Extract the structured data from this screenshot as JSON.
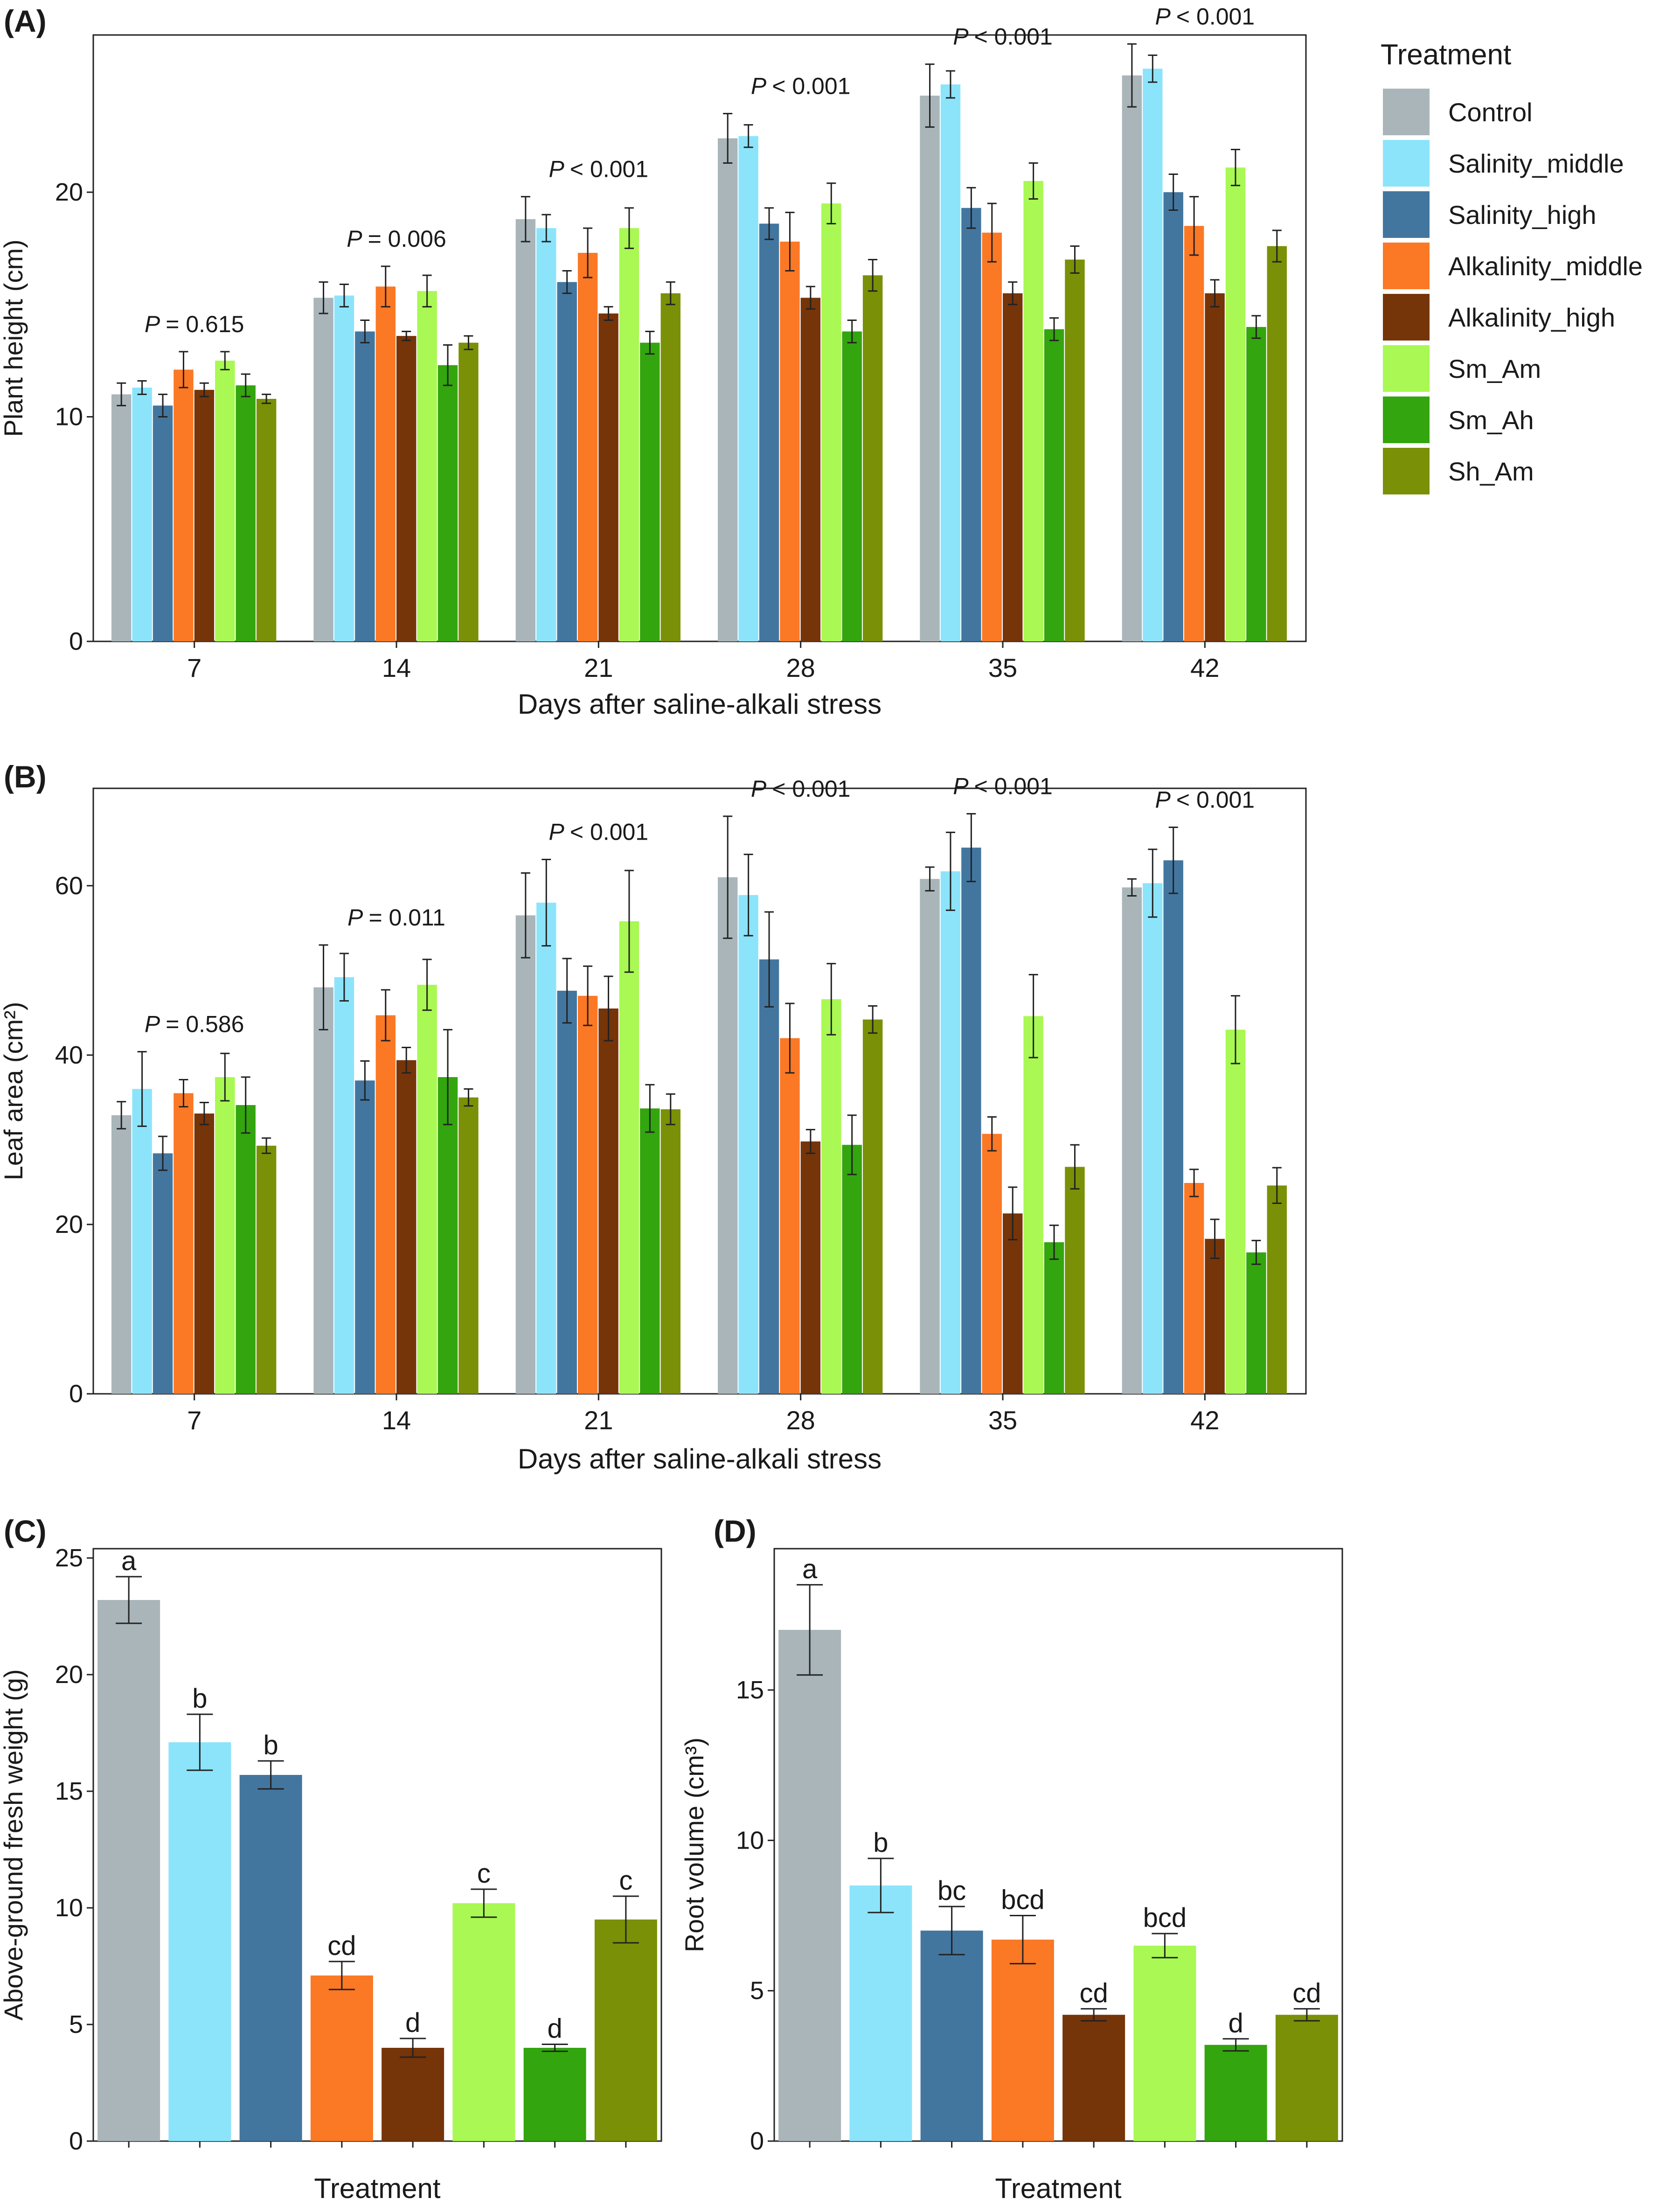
{
  "legend": {
    "title": "Treatment",
    "items": [
      {
        "name": "Control",
        "color": "#a9b5b9"
      },
      {
        "name": "Salinity_middle",
        "color": "#8ce4fb"
      },
      {
        "name": "Salinity_high",
        "color": "#43769f"
      },
      {
        "name": "Alkalinity_middle",
        "color": "#fb7825"
      },
      {
        "name": "Alkalinity_high",
        "color": "#763409"
      },
      {
        "name": "Sm_Am",
        "color": "#a9f853"
      },
      {
        "name": "Sm_Ah",
        "color": "#33a50e"
      },
      {
        "name": "Sh_Am",
        "color": "#7a9006"
      }
    ]
  },
  "chart_data": [
    {
      "panel": "(A)",
      "type": "bar",
      "xlabel": "Days after saline-alkali stress",
      "ylabel": "Plant height (cm)",
      "ylim": [
        0,
        27
      ],
      "yticks": [
        0,
        10,
        20
      ],
      "categories": [
        "7",
        "14",
        "21",
        "28",
        "35",
        "42"
      ],
      "p_values": [
        "= 0.615",
        "= 0.006",
        "< 0.001",
        "< 0.001",
        "< 0.001",
        "< 0.001"
      ],
      "series": [
        {
          "name": "Control",
          "values": [
            11.0,
            15.3,
            18.8,
            22.4,
            24.3,
            25.2
          ],
          "errors": [
            0.5,
            0.7,
            1.0,
            1.1,
            1.4,
            1.4
          ]
        },
        {
          "name": "Salinity_middle",
          "values": [
            11.3,
            15.4,
            18.4,
            22.5,
            24.8,
            25.5
          ],
          "errors": [
            0.3,
            0.5,
            0.6,
            0.5,
            0.6,
            0.6
          ]
        },
        {
          "name": "Salinity_high",
          "values": [
            10.5,
            13.8,
            16.0,
            18.6,
            19.3,
            20.0
          ],
          "errors": [
            0.5,
            0.5,
            0.5,
            0.7,
            0.9,
            0.8
          ]
        },
        {
          "name": "Alkalinity_middle",
          "values": [
            12.1,
            15.8,
            17.3,
            17.8,
            18.2,
            18.5
          ],
          "errors": [
            0.8,
            0.9,
            1.1,
            1.3,
            1.3,
            1.3
          ]
        },
        {
          "name": "Alkalinity_high",
          "values": [
            11.2,
            13.6,
            14.6,
            15.3,
            15.5,
            15.5
          ],
          "errors": [
            0.3,
            0.2,
            0.3,
            0.5,
            0.5,
            0.6
          ]
        },
        {
          "name": "Sm_Am",
          "values": [
            12.5,
            15.6,
            18.4,
            19.5,
            20.5,
            21.1
          ],
          "errors": [
            0.4,
            0.7,
            0.9,
            0.9,
            0.8,
            0.8
          ]
        },
        {
          "name": "Sm_Ah",
          "values": [
            11.4,
            12.3,
            13.3,
            13.8,
            13.9,
            14.0
          ],
          "errors": [
            0.5,
            0.9,
            0.5,
            0.5,
            0.5,
            0.5
          ]
        },
        {
          "name": "Sh_Am",
          "values": [
            10.8,
            13.3,
            15.5,
            16.3,
            17.0,
            17.6
          ],
          "errors": [
            0.2,
            0.3,
            0.5,
            0.7,
            0.6,
            0.7
          ]
        }
      ]
    },
    {
      "panel": "(B)",
      "type": "bar",
      "xlabel": "Days after saline-alkali stress",
      "ylabel": "Leaf area (cm²)",
      "ylim": [
        0,
        71.5
      ],
      "yticks": [
        0,
        20,
        40,
        60
      ],
      "categories": [
        "7",
        "14",
        "21",
        "28",
        "35",
        "42"
      ],
      "p_values": [
        "= 0.586",
        "= 0.011",
        "< 0.001",
        "< 0.001",
        "< 0.001",
        "< 0.001"
      ],
      "series": [
        {
          "name": "Control",
          "values": [
            32.9,
            48.0,
            56.5,
            61.0,
            60.8,
            59.8
          ],
          "errors": [
            1.6,
            5.0,
            5.0,
            7.2,
            1.4,
            1.0
          ]
        },
        {
          "name": "Salinity_middle",
          "values": [
            36.0,
            49.2,
            58.0,
            58.9,
            61.7,
            60.3
          ],
          "errors": [
            4.4,
            2.8,
            5.1,
            4.8,
            4.6,
            4.0
          ]
        },
        {
          "name": "Salinity_high",
          "values": [
            28.4,
            37.0,
            47.6,
            51.3,
            64.5,
            63.0
          ],
          "errors": [
            2.0,
            2.3,
            3.8,
            5.6,
            4.0,
            3.9
          ]
        },
        {
          "name": "Alkalinity_middle",
          "values": [
            35.5,
            44.7,
            47.0,
            42.0,
            30.7,
            24.9
          ],
          "errors": [
            1.6,
            3.0,
            3.5,
            4.1,
            2.0,
            1.6
          ]
        },
        {
          "name": "Alkalinity_high",
          "values": [
            33.1,
            39.4,
            45.5,
            29.8,
            21.3,
            18.3
          ],
          "errors": [
            1.3,
            1.5,
            3.8,
            1.4,
            3.1,
            2.3
          ]
        },
        {
          "name": "Sm_Am",
          "values": [
            37.4,
            48.3,
            55.8,
            46.6,
            44.6,
            43.0
          ],
          "errors": [
            2.8,
            3.0,
            6.0,
            4.2,
            4.9,
            4.0
          ]
        },
        {
          "name": "Sm_Ah",
          "values": [
            34.1,
            37.4,
            33.7,
            29.4,
            17.9,
            16.7
          ],
          "errors": [
            3.3,
            5.6,
            2.8,
            3.5,
            2.0,
            1.4
          ]
        },
        {
          "name": "Sh_Am",
          "values": [
            29.3,
            35.0,
            33.6,
            44.2,
            26.8,
            24.6
          ],
          "errors": [
            0.9,
            1.0,
            1.8,
            1.6,
            2.6,
            2.1
          ]
        }
      ]
    },
    {
      "panel": "(C)",
      "type": "bar",
      "xlabel": "Treatment",
      "ylabel": "Above-ground fresh weight (g)",
      "ylim": [
        0,
        25.4
      ],
      "yticks": [
        0,
        5,
        10,
        15,
        20,
        25
      ],
      "categories": [
        "Control",
        "Salinity_middle",
        "Salinity_high",
        "Alkalinity_middle",
        "Alkalinity_high",
        "Sm_Am",
        "Sm_Ah",
        "Sh_Am"
      ],
      "values": [
        23.2,
        17.1,
        15.7,
        7.1,
        4.0,
        10.2,
        4.0,
        9.5
      ],
      "errors": [
        1.0,
        1.2,
        0.6,
        0.6,
        0.4,
        0.6,
        0.15,
        1.0
      ],
      "letters": [
        "a",
        "b",
        "b",
        "cd",
        "d",
        "c",
        "d",
        "c"
      ]
    },
    {
      "panel": "(D)",
      "type": "bar",
      "xlabel": "Treatment",
      "ylabel": "Root volume (cm³)",
      "ylim": [
        0,
        19.7
      ],
      "yticks": [
        0,
        5,
        10,
        15
      ],
      "categories": [
        "Control",
        "Salinity_middle",
        "Salinity_high",
        "Alkalinity_middle",
        "Alkalinity_high",
        "Sm_Am",
        "Sm_Ah",
        "Sh_Am"
      ],
      "values": [
        17.0,
        8.5,
        7.0,
        6.7,
        4.2,
        6.5,
        3.2,
        4.2
      ],
      "errors": [
        1.5,
        0.9,
        0.8,
        0.8,
        0.2,
        0.4,
        0.2,
        0.2
      ],
      "letters": [
        "a",
        "b",
        "bc",
        "bcd",
        "cd",
        "bcd",
        "d",
        "cd"
      ]
    }
  ]
}
